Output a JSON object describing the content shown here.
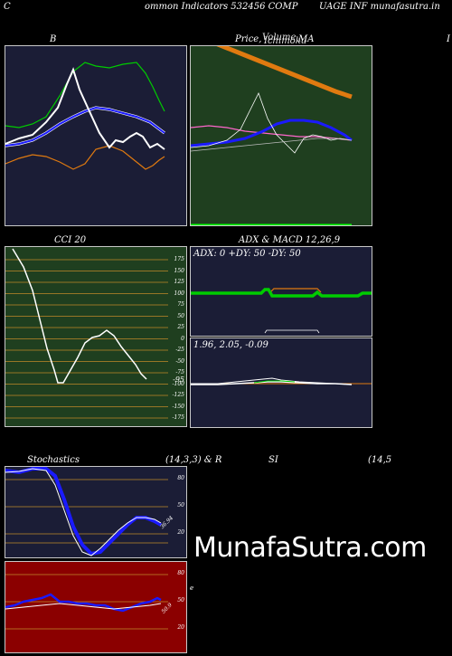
{
  "header": {
    "left_letter": "C",
    "left_text": "ommon  Indicators 532456  COMP",
    "right_text": "UAGE INF munafasutra.in"
  },
  "panels": {
    "bollinger": {
      "title": "B"
    },
    "price_ma": {
      "title_a": "Price,",
      "title_b": "Volume",
      "title_c": "Ichimoku",
      "title_d": "MA",
      "edge_letter": "I"
    },
    "cci": {
      "title": "CCI 20",
      "ticks": [
        "175",
        "150",
        "125",
        "100",
        "75",
        "50",
        "25",
        "0",
        "-25",
        "-50",
        "-75",
        "-100",
        "-125",
        "-150",
        "-175"
      ],
      "current_value": "-95"
    },
    "adx": {
      "title": "ADX  & MACD 12,26,9",
      "readout": "ADX: 0  +DY: 50  -DY: 50"
    },
    "macd": {
      "readout": "1.96,  2.05,  -0.09"
    },
    "stochastics": {
      "title_left": "Stochastics",
      "title_mid": "(14,3,3) & R",
      "ticks": [
        "80",
        "50",
        "20"
      ],
      "current_value": "36.94"
    },
    "rsi": {
      "title_left": "SI",
      "title_right": "(14,5",
      "ticks": [
        "80",
        "50",
        "20"
      ],
      "current_value": "50.9",
      "side_mark": "e"
    }
  },
  "watermark": "MunafaSutra.com",
  "colors": {
    "navy_panel": "#1b1d36",
    "green_panel": "#1f3f1f",
    "dark_red_panel": "#8b0000",
    "blue_line": "#1a1aff",
    "green_line": "#00cc00",
    "orange_line": "#e07a10",
    "white_line": "#ffffff",
    "gridline": "#c08a2a"
  }
}
